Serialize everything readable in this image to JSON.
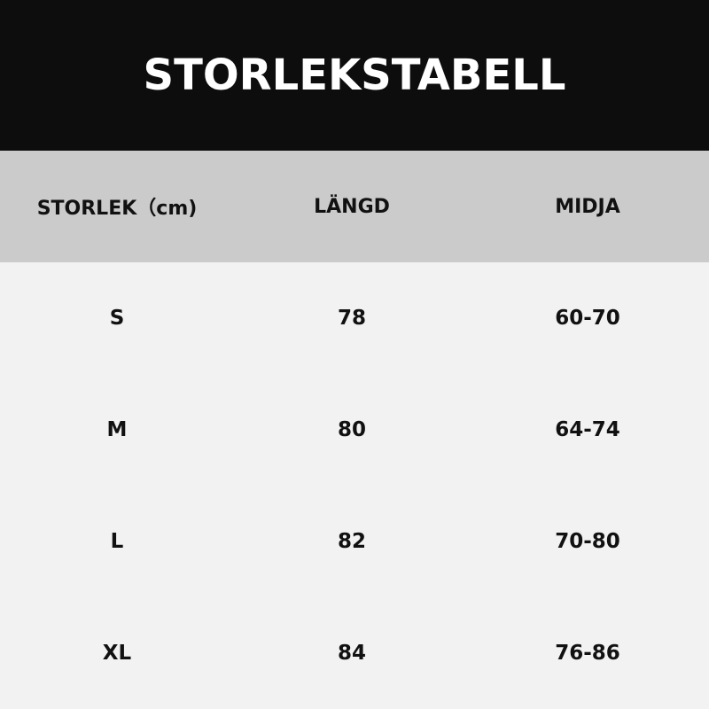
{
  "title": "STORLEKSTABELL",
  "headers": [
    "STORLEK（cm)",
    "LÄNGD",
    "MIDJA"
  ],
  "rows": [
    [
      "S",
      "78",
      "60-70"
    ],
    [
      "M",
      "80",
      "64-74"
    ],
    [
      "L",
      "82",
      "70-80"
    ],
    [
      "XL",
      "84",
      "76-86"
    ]
  ]
}
